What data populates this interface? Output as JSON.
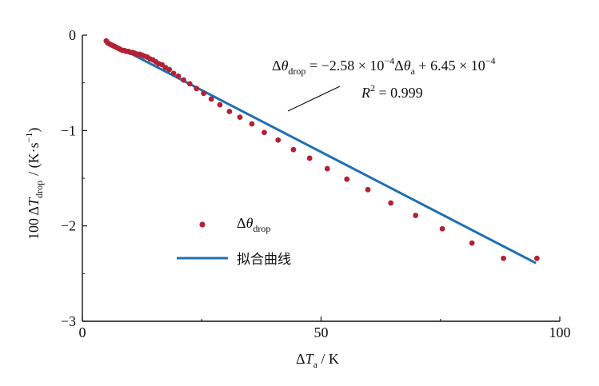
{
  "chart_data": {
    "type": "scatter",
    "x_range": [
      0,
      100
    ],
    "y_range": [
      -3,
      0
    ],
    "x_ticks": [
      "0",
      "50",
      "100"
    ],
    "y_ticks": [
      "0",
      "-1",
      "-2",
      "-3"
    ],
    "xlabel": {
      "delta": "Δ",
      "var": "T",
      "sub": "a",
      "unit": " / K"
    },
    "ylabel": {
      "prefix": "100 Δ",
      "var": "T",
      "sub": "drop",
      "unit_a": "/ (K·s",
      "unit_sup": "−1",
      "unit_b": ")"
    },
    "equation": {
      "lhs_delta": "Δ",
      "lhs_theta": "θ",
      "lhs_sub": "drop",
      "rhs_a": " = −2.58 × 10",
      "rhs_a_sup": "−4",
      "rhs_b_delta": "Δ",
      "rhs_b_theta": "θ",
      "rhs_b_sub": "a",
      "rhs_c": " + 6.45 × 10",
      "rhs_c_sup": "−4"
    },
    "r2": {
      "var": "R",
      "sup": "2",
      "value": " = 0.999"
    },
    "legend": {
      "scatter": {
        "delta": "Δ",
        "theta": "θ",
        "sub": "drop",
        "color": "#b22234"
      },
      "line": {
        "label": "拟合曲线",
        "color": "#1f6fb2"
      }
    },
    "fit_line": {
      "x0": 5,
      "y0": -0.06,
      "x1": 95,
      "y1": -2.39,
      "color": "#1f6fb2"
    },
    "series": [
      {
        "color": "#b22234",
        "points": [
          [
            5.0,
            -0.06
          ],
          [
            5.3,
            -0.08
          ],
          [
            5.6,
            -0.09
          ],
          [
            6.0,
            -0.1
          ],
          [
            6.4,
            -0.11
          ],
          [
            6.8,
            -0.12
          ],
          [
            7.2,
            -0.13
          ],
          [
            7.6,
            -0.14
          ],
          [
            8.0,
            -0.15
          ],
          [
            8.4,
            -0.16
          ],
          [
            8.8,
            -0.16
          ],
          [
            9.2,
            -0.17
          ],
          [
            9.6,
            -0.17
          ],
          [
            10.0,
            -0.18
          ],
          [
            10.5,
            -0.18
          ],
          [
            11.0,
            -0.19
          ],
          [
            11.5,
            -0.2
          ],
          [
            12.0,
            -0.2
          ],
          [
            12.5,
            -0.21
          ],
          [
            13.0,
            -0.22
          ],
          [
            13.6,
            -0.23
          ],
          [
            14.2,
            -0.25
          ],
          [
            14.8,
            -0.26
          ],
          [
            15.4,
            -0.28
          ],
          [
            16.0,
            -0.3
          ],
          [
            16.7,
            -0.31
          ],
          [
            17.4,
            -0.34
          ],
          [
            18.2,
            -0.36
          ],
          [
            19.1,
            -0.4
          ],
          [
            20.1,
            -0.43
          ],
          [
            21.2,
            -0.47
          ],
          [
            22.5,
            -0.51
          ],
          [
            23.9,
            -0.56
          ],
          [
            25.4,
            -0.61
          ],
          [
            27.0,
            -0.67
          ],
          [
            28.8,
            -0.73
          ],
          [
            30.8,
            -0.8
          ],
          [
            33.0,
            -0.86
          ],
          [
            35.5,
            -0.93
          ],
          [
            38.1,
            -1.02
          ],
          [
            41.0,
            -1.1
          ],
          [
            44.2,
            -1.2
          ],
          [
            47.6,
            -1.29
          ],
          [
            51.3,
            -1.4
          ],
          [
            55.4,
            -1.51
          ],
          [
            59.8,
            -1.62
          ],
          [
            64.6,
            -1.76
          ],
          [
            69.8,
            -1.89
          ],
          [
            75.4,
            -2.03
          ],
          [
            81.6,
            -2.18
          ],
          [
            88.2,
            -2.34
          ],
          [
            95.2,
            -2.34
          ]
        ]
      }
    ]
  }
}
